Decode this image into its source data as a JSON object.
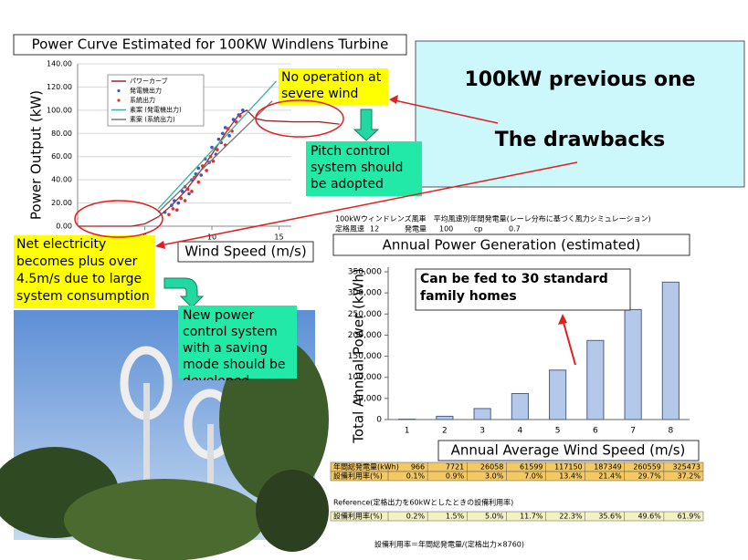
{
  "chart_data": [
    {
      "type": "scatter",
      "title": "Power Curve Estimated for 100KW Windlens Turbine",
      "x_label": "Wind Speed (m/s)",
      "y_label": "Power Output (kW)",
      "xlim": [
        0,
        20
      ],
      "xticks": [
        5,
        10,
        15
      ],
      "ylim": [
        0,
        140
      ],
      "yticks": [
        {
          "value": 0,
          "label": "0.00"
        },
        {
          "value": 20,
          "label": "20.00"
        },
        {
          "value": 40,
          "label": "40.00"
        },
        {
          "value": 60,
          "label": "60.00"
        },
        {
          "value": 80,
          "label": "80.00"
        },
        {
          "value": 100,
          "label": "100.00"
        },
        {
          "value": 120,
          "label": "120.00"
        },
        {
          "value": 140,
          "label": "140.00"
        }
      ],
      "grid": true,
      "series": [
        {
          "name": "パワーカーブ",
          "color": "#a0232a",
          "mode": "line",
          "x": [
            0,
            4,
            5,
            6,
            7,
            8,
            9,
            10,
            11,
            12,
            12.6,
            13.2,
            14,
            16,
            18,
            19.5
          ],
          "values": [
            0,
            0,
            2,
            8,
            18,
            30,
            45,
            62,
            80,
            96,
            100,
            93,
            91,
            90,
            90,
            88
          ]
        },
        {
          "name": "発電機出力",
          "color": "#3a55c8",
          "mode": "points",
          "x": [
            6.5,
            7,
            7.2,
            7.5,
            7.8,
            8,
            8.3,
            8.5,
            8.8,
            9,
            9.2,
            9.5,
            9.8,
            10,
            10.3,
            10.5,
            10.8,
            11,
            11.3,
            11.6,
            12,
            12.3
          ],
          "values": [
            12,
            18,
            22,
            20,
            30,
            34,
            28,
            40,
            45,
            50,
            44,
            58,
            55,
            68,
            62,
            75,
            80,
            85,
            78,
            92,
            96,
            100
          ]
        },
        {
          "name": "系統出力",
          "color": "#e03030",
          "mode": "points",
          "x": [
            6.8,
            7.1,
            7.4,
            7.7,
            8,
            8.2,
            8.5,
            8.7,
            9,
            9.3,
            9.6,
            9.9,
            10.1,
            10.4,
            10.7,
            11,
            11.2,
            11.5,
            11.8,
            12.1
          ],
          "values": [
            10,
            15,
            14,
            24,
            22,
            32,
            30,
            42,
            38,
            52,
            48,
            60,
            56,
            66,
            72,
            70,
            84,
            82,
            90,
            95
          ]
        },
        {
          "name": "素案 (発電機出力)",
          "color": "#2fb59a",
          "mode": "line",
          "x": [
            6,
            14.8
          ],
          "values": [
            15,
            125
          ]
        },
        {
          "name": "素案 (系統出力)",
          "color": "#777777",
          "mode": "line",
          "x": [
            6,
            14.5
          ],
          "values": [
            12,
            108
          ]
        }
      ]
    },
    {
      "type": "bar",
      "title": "Annual Power Generation (estimated)",
      "x_label": "Annual Average Wind Speed (m/s)",
      "y_label": "Total Annual Power (kWh)",
      "categories": [
        "1",
        "2",
        "3",
        "4",
        "5",
        "6",
        "7",
        "8"
      ],
      "values": [
        966,
        7721,
        26058,
        61599,
        117150,
        187349,
        260559,
        325473
      ],
      "color": "#b4c8ea",
      "ylim": [
        0,
        350000
      ],
      "yticks": [
        0,
        {
          "value": 50000,
          "label": "50,000"
        },
        {
          "value": 100000,
          "label": "100,000"
        },
        {
          "value": 150000,
          "label": "150,000"
        },
        {
          "value": 200000,
          "label": "200,000"
        },
        {
          "value": 250000,
          "label": "250,000"
        },
        {
          "value": 300000,
          "label": "300,000"
        },
        {
          "value": 350000,
          "label": "350,000"
        }
      ],
      "annotation": "Can be fed to 30 standard family homes"
    }
  ],
  "panel": {
    "line1": "100kW previous one",
    "line2": "The drawbacks"
  },
  "callouts": {
    "severe": "No operation at severe wind",
    "pitch": "Pitch control system should be adopted",
    "net": "Net electricity becomes plus over 4.5m/s due to large system consumption",
    "saving": "New power control system with a saving mode should be developed"
  },
  "sheet": {
    "header": "100kWウィンドレンズ風車　平均風速別年間発電量(レーレ分布に基づく風力シミュレーション)",
    "params": [
      "定格風速",
      "12",
      "発電量",
      "100",
      "cp",
      "0.7"
    ],
    "row1_label": "年間総発電量(kWh)",
    "row2_label": "設備利用率(%)",
    "row2": [
      "0.1%",
      "0.9%",
      "3.0%",
      "7.0%",
      "13.4%",
      "21.4%",
      "29.7%",
      "37.2%"
    ],
    "reference": "Reference(定格出力を60kWとしたときの設備利用率)",
    "row3_label": "設備利用率(%)",
    "row3": [
      "0.2%",
      "1.5%",
      "5.0%",
      "11.7%",
      "22.3%",
      "35.6%",
      "49.6%",
      "61.9%"
    ],
    "footer": "設備利用率＝年間総発電量/(定格出力×8760)"
  }
}
